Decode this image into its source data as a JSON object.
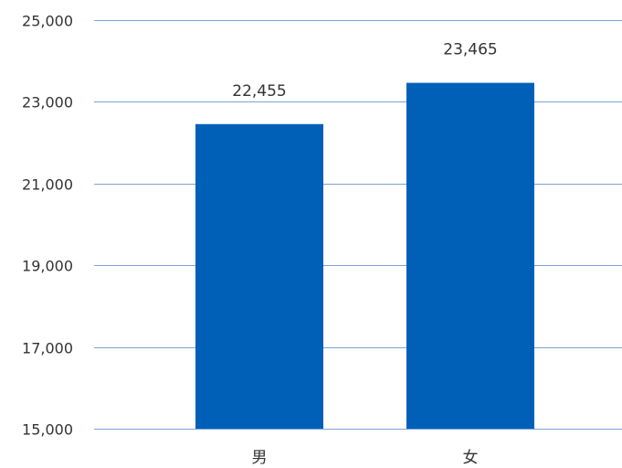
{
  "chart_data": {
    "type": "bar",
    "categories": [
      "男",
      "女"
    ],
    "values": [
      22455,
      23465
    ],
    "value_labels": [
      "22,455",
      "23,465"
    ],
    "y_ticks": [
      15000,
      17000,
      19000,
      21000,
      23000,
      25000
    ],
    "y_tick_labels": [
      "15,000",
      "17,000",
      "19,000",
      "21,000",
      "23,000",
      "25,000"
    ],
    "ylim": [
      15000,
      25000
    ],
    "grid": true,
    "title": "",
    "xlabel": "",
    "ylabel": "",
    "colors": {
      "bar": "#0060b8",
      "grid": "#7aa3d6",
      "text": "#333333"
    }
  }
}
